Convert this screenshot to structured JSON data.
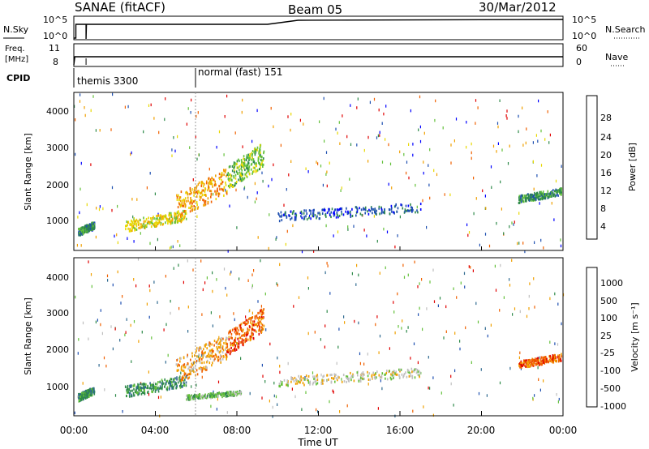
{
  "header": {
    "title": "SANAE (fitACF)",
    "beam": "Beam 05",
    "date": "30/Mar/2012"
  },
  "aux_panels": {
    "nsky": {
      "label": "N.Sky",
      "left_ticks": [
        "10^5",
        "10^0"
      ],
      "right_label": "N.Search",
      "right_ticks": [
        "10^5",
        "10^0"
      ]
    },
    "freq": {
      "label_line1": "Freq.",
      "label_line2": "[MHz]",
      "left_ticks": [
        "11",
        "8"
      ],
      "right_label": "Nave",
      "right_ticks": [
        "60",
        "0"
      ]
    },
    "cpid": {
      "label": "CPID",
      "segments": [
        {
          "label": "themis 3300",
          "start_h": 0.0
        },
        {
          "label": "normal (fast) 151",
          "start_h": 6.0
        }
      ]
    }
  },
  "chart_data": [
    {
      "type": "heatmap",
      "name": "power",
      "title": "",
      "xlabel": "",
      "ylabel": "Slant Range [km]",
      "x_range_h": [
        0,
        24
      ],
      "ylim": [
        200,
        4500
      ],
      "y_ticks": [
        "4000",
        "3000",
        "2000",
        "1000"
      ],
      "colorbar": {
        "label": "Power [dB]",
        "ticks": [
          "28",
          "24",
          "20",
          "16",
          "12",
          "8",
          "4"
        ],
        "colors": [
          "#0000ff",
          "#1e4fb0",
          "#2f8a4a",
          "#63c03a",
          "#e8d800",
          "#f0a000",
          "#f06000",
          "#e00000"
        ]
      },
      "features": [
        {
          "h0": 0.2,
          "h1": 1.0,
          "r0": 600,
          "r1": 1000,
          "level": 2
        },
        {
          "h0": 2.5,
          "h1": 5.5,
          "r0": 700,
          "r1": 1300,
          "level": 4
        },
        {
          "h0": 5.0,
          "h1": 7.5,
          "r0": 1000,
          "r1": 2400,
          "level": 5
        },
        {
          "h0": 7.5,
          "h1": 9.3,
          "r0": 1800,
          "r1": 3100,
          "level": 3
        },
        {
          "h0": 10.0,
          "h1": 17.0,
          "r0": 1000,
          "r1": 1500,
          "level": 1
        },
        {
          "h0": 21.8,
          "h1": 23.9,
          "r0": 1500,
          "r1": 1900,
          "level": 2
        }
      ]
    },
    {
      "type": "heatmap",
      "name": "velocity",
      "title": "",
      "xlabel": "Time UT",
      "ylabel": "Slant Range [km]",
      "x_ticks": [
        "00:00",
        "04:00",
        "08:00",
        "12:00",
        "16:00",
        "20:00",
        "00:00"
      ],
      "x_range_h": [
        0,
        24
      ],
      "ylim": [
        200,
        4500
      ],
      "y_ticks": [
        "4000",
        "3000",
        "2000",
        "1000"
      ],
      "colorbar": {
        "label": "Velocity [m s⁻¹]",
        "ticks": [
          "1000",
          "500",
          "100",
          "25",
          "-25",
          "-100",
          "-500",
          "-1000"
        ],
        "colors": [
          "#1e4fb0",
          "#2f6a90",
          "#2f8a4a",
          "#63c03a",
          "#bfbfbf",
          "#f0a000",
          "#f06000",
          "#e00000"
        ]
      },
      "features": [
        {
          "h0": 0.2,
          "h1": 1.0,
          "r0": 600,
          "r1": 1000,
          "level": 2
        },
        {
          "h0": 2.5,
          "h1": 5.5,
          "r0": 700,
          "r1": 1300,
          "level": 2
        },
        {
          "h0": 5.0,
          "h1": 7.5,
          "r0": 1000,
          "r1": 2400,
          "level": 5
        },
        {
          "h0": 5.5,
          "h1": 8.2,
          "r0": 650,
          "r1": 900,
          "level": 3
        },
        {
          "h0": 7.5,
          "h1": 9.3,
          "r0": 1800,
          "r1": 3100,
          "level": 6
        },
        {
          "h0": 10.0,
          "h1": 17.0,
          "r0": 1000,
          "r1": 1500,
          "level": 4
        },
        {
          "h0": 21.8,
          "h1": 23.9,
          "r0": 1500,
          "r1": 1900,
          "level": 6
        }
      ]
    }
  ]
}
